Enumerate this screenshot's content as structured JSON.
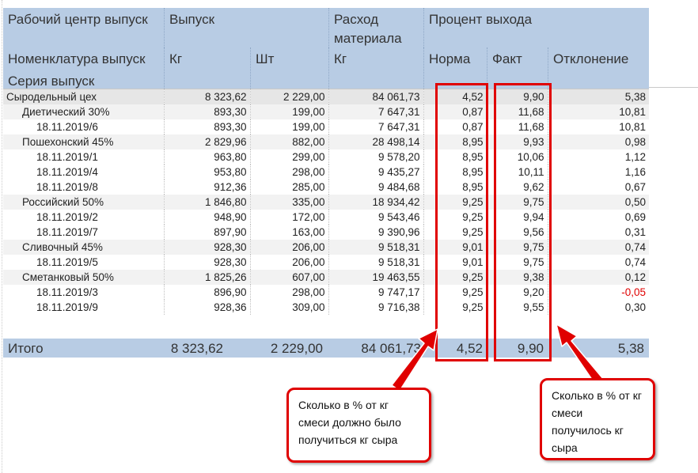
{
  "header": {
    "rc_label": "Рабочий центр выпуск",
    "output": "Выпуск",
    "material": "Расход материала",
    "yield": "Процент выхода",
    "nomenclature": "Номенклатура выпуск",
    "kg": "Кг",
    "pcs": "Шт",
    "mat_kg": "Кг",
    "norm": "Норма",
    "fact": "Факт",
    "dev": "Отклонение",
    "series": "Серия выпуск"
  },
  "rows": [
    {
      "name": "Сыродельный цех",
      "level": 0,
      "kg": "8 323,62",
      "pcs": "2 229,00",
      "mat": "84 061,73",
      "norm": "4,52",
      "fact": "9,90",
      "dev": "5,38"
    },
    {
      "name": "Диетический 30%",
      "level": 1,
      "kg": "893,30",
      "pcs": "199,00",
      "mat": "7 647,31",
      "norm": "0,87",
      "fact": "11,68",
      "dev": "10,81"
    },
    {
      "name": "18.11.2019/6",
      "level": 2,
      "kg": "893,30",
      "pcs": "199,00",
      "mat": "7 647,31",
      "norm": "0,87",
      "fact": "11,68",
      "dev": "10,81"
    },
    {
      "name": "Пошехонский 45%",
      "level": 1,
      "kg": "2 829,96",
      "pcs": "882,00",
      "mat": "28 498,14",
      "norm": "8,95",
      "fact": "9,93",
      "dev": "0,98"
    },
    {
      "name": "18.11.2019/1",
      "level": 2,
      "kg": "963,80",
      "pcs": "299,00",
      "mat": "9 578,20",
      "norm": "8,95",
      "fact": "10,06",
      "dev": "1,12"
    },
    {
      "name": "18.11.2019/4",
      "level": 2,
      "kg": "953,80",
      "pcs": "298,00",
      "mat": "9 435,27",
      "norm": "8,95",
      "fact": "10,11",
      "dev": "1,16"
    },
    {
      "name": "18.11.2019/8",
      "level": 2,
      "kg": "912,36",
      "pcs": "285,00",
      "mat": "9 484,68",
      "norm": "8,95",
      "fact": "9,62",
      "dev": "0,67"
    },
    {
      "name": "Российский 50%",
      "level": 1,
      "kg": "1 846,80",
      "pcs": "335,00",
      "mat": "18 934,42",
      "norm": "9,25",
      "fact": "9,75",
      "dev": "0,50"
    },
    {
      "name": "18.11.2019/2",
      "level": 2,
      "kg": "948,90",
      "pcs": "172,00",
      "mat": "9 543,46",
      "norm": "9,25",
      "fact": "9,94",
      "dev": "0,69"
    },
    {
      "name": "18.11.2019/7",
      "level": 2,
      "kg": "897,90",
      "pcs": "163,00",
      "mat": "9 390,96",
      "norm": "9,25",
      "fact": "9,56",
      "dev": "0,31"
    },
    {
      "name": "Сливочный 45%",
      "level": 1,
      "kg": "928,30",
      "pcs": "206,00",
      "mat": "9 518,31",
      "norm": "9,01",
      "fact": "9,75",
      "dev": "0,74"
    },
    {
      "name": "18.11.2019/5",
      "level": 2,
      "kg": "928,30",
      "pcs": "206,00",
      "mat": "9 518,31",
      "norm": "9,01",
      "fact": "9,75",
      "dev": "0,74"
    },
    {
      "name": "Сметанковый 50%",
      "level": 1,
      "kg": "1 825,26",
      "pcs": "607,00",
      "mat": "19 463,55",
      "norm": "9,25",
      "fact": "9,38",
      "dev": "0,12"
    },
    {
      "name": "18.11.2019/3",
      "level": 2,
      "kg": "896,90",
      "pcs": "298,00",
      "mat": "9 747,17",
      "norm": "9,25",
      "fact": "9,20",
      "dev": "-0,05"
    },
    {
      "name": "18.11.2019/9",
      "level": 2,
      "kg": "928,36",
      "pcs": "309,00",
      "mat": "9 716,38",
      "norm": "9,25",
      "fact": "9,55",
      "dev": "0,30"
    }
  ],
  "total": {
    "label": "Итого",
    "kg": "8 323,62",
    "pcs": "2 229,00",
    "mat": "84 061,73",
    "norm": "4,52",
    "fact": "9,90",
    "dev": "5,38"
  },
  "callouts": {
    "norm": "Сколько в % от кг смеси должно было получиться кг сыра",
    "fact": "Сколько в % от кг смеси получилось кг сыра"
  },
  "colors": {
    "header_bg": "#b8cce4",
    "highlight": "#e00000",
    "negative": "#e00000"
  }
}
